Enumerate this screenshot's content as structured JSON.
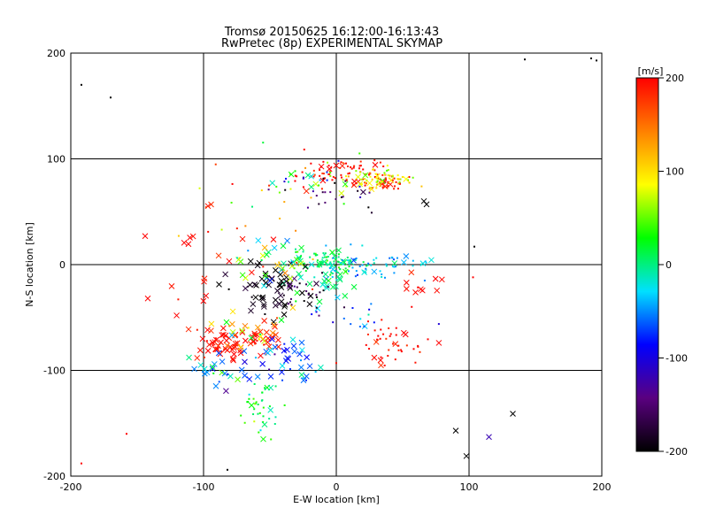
{
  "chart_data": {
    "type": "scatter",
    "title": "Tromsø 20150625 16:12:00-16:13:43",
    "subtitle": "RwPretec (8p) EXPERIMENTAL SKYMAP",
    "xlabel": "E-W location [km]",
    "ylabel": "N-S location [km]",
    "xlim": [
      -200,
      200
    ],
    "ylim": [
      -200,
      200
    ],
    "xticks": [
      "-200",
      "-100",
      "0",
      "100",
      "200"
    ],
    "yticks": [
      "-200",
      "-100",
      "0",
      "100",
      "200"
    ],
    "grid": true,
    "colorbar": {
      "label": "[m/s]",
      "range": [
        -200,
        200
      ],
      "ticks": [
        "-200",
        "-100",
        "0",
        "100",
        "200"
      ],
      "colors": [
        "#000000",
        "#5a0080",
        "#0000ff",
        "#00e0ff",
        "#00ff00",
        "#ffff00",
        "#ff8000",
        "#ff0000"
      ]
    },
    "markers": {
      "dot": "+ (small)",
      "cross": "x"
    },
    "clusters": [
      {
        "x": 5,
        "y": 88,
        "sx": 18,
        "sy": 7,
        "n": 70,
        "v": 195,
        "vs": 15,
        "m": "dot"
      },
      {
        "x": 38,
        "y": 78,
        "sx": 8,
        "sy": 4,
        "n": 35,
        "v": 190,
        "vs": 12,
        "m": "dot"
      },
      {
        "x": 30,
        "y": 82,
        "sx": 14,
        "sy": 5,
        "n": 60,
        "v": 85,
        "vs": 25,
        "m": "dot"
      },
      {
        "x": -20,
        "y": 80,
        "sx": 22,
        "sy": 12,
        "n": 30,
        "v": 40,
        "vs": 80,
        "m": "dot"
      },
      {
        "x": 5,
        "y": 68,
        "sx": 20,
        "sy": 10,
        "n": 25,
        "v": -150,
        "vs": 40,
        "m": "dot"
      },
      {
        "x": -5,
        "y": 2,
        "sx": 14,
        "sy": 6,
        "n": 90,
        "v": 10,
        "vs": 12,
        "m": "dot"
      },
      {
        "x": 30,
        "y": 0,
        "sx": 25,
        "sy": 6,
        "n": 60,
        "v": -40,
        "vs": 15,
        "m": "dot"
      },
      {
        "x": -10,
        "y": -20,
        "sx": 10,
        "sy": 8,
        "n": 25,
        "v": -15,
        "vs": 20,
        "m": "cross"
      },
      {
        "x": -50,
        "y": -25,
        "sx": 14,
        "sy": 14,
        "n": 55,
        "v": -195,
        "vs": 10,
        "m": "cross"
      },
      {
        "x": -25,
        "y": -30,
        "sx": 10,
        "sy": 10,
        "n": 25,
        "v": -180,
        "vs": 20,
        "m": "dot"
      },
      {
        "x": -45,
        "y": 5,
        "sx": 15,
        "sy": 12,
        "n": 30,
        "v": 30,
        "vs": 50,
        "m": "cross"
      },
      {
        "x": -85,
        "y": -75,
        "sx": 10,
        "sy": 8,
        "n": 40,
        "v": 195,
        "vs": 10,
        "m": "cross"
      },
      {
        "x": -60,
        "y": -72,
        "sx": 12,
        "sy": 6,
        "n": 30,
        "v": 195,
        "vs": 10,
        "m": "cross"
      },
      {
        "x": -38,
        "y": -90,
        "sx": 14,
        "sy": 12,
        "n": 40,
        "v": -60,
        "vs": 30,
        "m": "cross"
      },
      {
        "x": -55,
        "y": -135,
        "sx": 8,
        "sy": 15,
        "n": 40,
        "v": 20,
        "vs": 25,
        "m": "dot"
      },
      {
        "x": -85,
        "y": -95,
        "sx": 12,
        "sy": 12,
        "n": 25,
        "v": -40,
        "vs": 40,
        "m": "cross"
      },
      {
        "x": -70,
        "y": -60,
        "sx": 15,
        "sy": 8,
        "n": 25,
        "v": 80,
        "vs": 60,
        "m": "cross"
      },
      {
        "x": 45,
        "y": -72,
        "sx": 14,
        "sy": 10,
        "n": 45,
        "v": 195,
        "vs": 10,
        "m": "dot"
      },
      {
        "x": 65,
        "y": -20,
        "sx": 8,
        "sy": 6,
        "n": 10,
        "v": 195,
        "vs": 10,
        "m": "cross"
      },
      {
        "x": -100,
        "y": -15,
        "sx": 20,
        "sy": 30,
        "n": 20,
        "v": 195,
        "vs": 10,
        "m": "cross"
      },
      {
        "x": -60,
        "y": 40,
        "sx": 25,
        "sy": 30,
        "n": 25,
        "v": 150,
        "vs": 60,
        "m": "dot"
      },
      {
        "x": 20,
        "y": -55,
        "sx": 15,
        "sy": 10,
        "n": 15,
        "v": -80,
        "vs": 40,
        "m": "dot"
      }
    ],
    "outliers": [
      {
        "x": -144,
        "y": 27,
        "v": 200,
        "m": "cross"
      },
      {
        "x": -142,
        "y": -32,
        "v": 200,
        "m": "cross"
      },
      {
        "x": -158,
        "y": -160,
        "v": 200,
        "m": "dot"
      },
      {
        "x": -192,
        "y": -188,
        "v": 200,
        "m": "dot"
      },
      {
        "x": -192,
        "y": 170,
        "v": -200,
        "m": "dot"
      },
      {
        "x": -170,
        "y": 158,
        "v": -200,
        "m": "dot"
      },
      {
        "x": -82,
        "y": -194,
        "v": -200,
        "m": "dot"
      },
      {
        "x": 98,
        "y": -181,
        "v": -200,
        "m": "cross"
      },
      {
        "x": 90,
        "y": -157,
        "v": -200,
        "m": "cross"
      },
      {
        "x": 115,
        "y": -163,
        "v": -120,
        "m": "cross"
      },
      {
        "x": 133,
        "y": -141,
        "v": -200,
        "m": "cross"
      },
      {
        "x": 142,
        "y": 194,
        "v": -200,
        "m": "dot"
      },
      {
        "x": 192,
        "y": 195,
        "v": -200,
        "m": "dot"
      },
      {
        "x": 196,
        "y": 193,
        "v": -200,
        "m": "dot"
      },
      {
        "x": 104,
        "y": 17,
        "v": -200,
        "m": "dot"
      },
      {
        "x": 103,
        "y": -12,
        "v": 200,
        "m": "dot"
      },
      {
        "x": 66,
        "y": 60,
        "v": -200,
        "m": "cross"
      },
      {
        "x": 68,
        "y": 57,
        "v": -200,
        "m": "cross"
      },
      {
        "x": -55,
        "y": -165,
        "v": 30,
        "m": "cross"
      }
    ]
  }
}
